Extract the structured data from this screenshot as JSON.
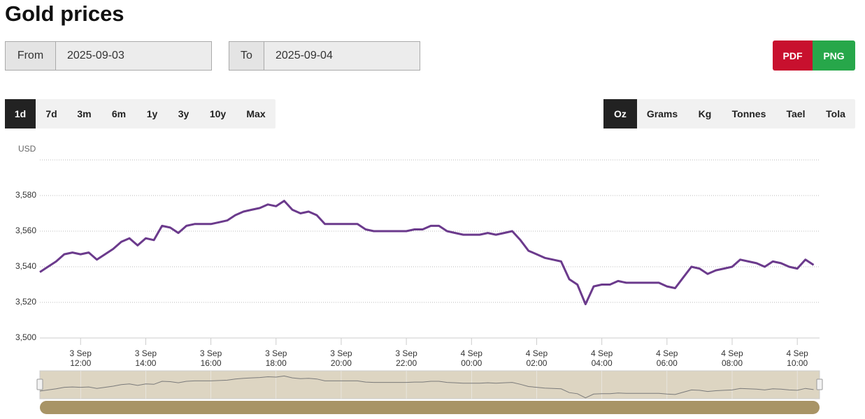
{
  "header": {
    "title": "Gold prices"
  },
  "controls": {
    "from": {
      "label": "From",
      "value": "2025-09-03"
    },
    "to": {
      "label": "To",
      "value": "2025-09-04"
    },
    "export": {
      "pdf": "PDF",
      "png": "PNG"
    },
    "ranges": {
      "items": [
        "1d",
        "7d",
        "3m",
        "6m",
        "1y",
        "3y",
        "10y",
        "Max"
      ],
      "active": 0
    },
    "units": {
      "items": [
        "Oz",
        "Grams",
        "Kg",
        "Tonnes",
        "Tael",
        "Tola"
      ],
      "active": 0
    }
  },
  "chart_data": {
    "type": "line",
    "y_label": "USD",
    "color": "#6b3a8c",
    "grid": true,
    "ylim": [
      3500,
      3600
    ],
    "yticks": [
      {
        "value": 3500,
        "label": "3,500"
      },
      {
        "value": 3520,
        "label": "3,520"
      },
      {
        "value": 3540,
        "label": "3,540"
      },
      {
        "value": 3560,
        "label": "3,560"
      },
      {
        "value": 3580,
        "label": "3,580"
      }
    ],
    "xlim": [
      "2025-09-03 10:45",
      "2025-09-04 10:41"
    ],
    "xticks": [
      {
        "value": "2025-09-03 12:00",
        "label": "3 Sep 12:00"
      },
      {
        "value": "2025-09-03 14:00",
        "label": "3 Sep 14:00"
      },
      {
        "value": "2025-09-03 16:00",
        "label": "3 Sep 16:00"
      },
      {
        "value": "2025-09-03 18:00",
        "label": "3 Sep 18:00"
      },
      {
        "value": "2025-09-03 20:00",
        "label": "3 Sep 20:00"
      },
      {
        "value": "2025-09-03 22:00",
        "label": "3 Sep 22:00"
      },
      {
        "value": "2025-09-04 00:00",
        "label": "4 Sep 00:00"
      },
      {
        "value": "2025-09-04 02:00",
        "label": "4 Sep 02:00"
      },
      {
        "value": "2025-09-04 04:00",
        "label": "4 Sep 04:00"
      },
      {
        "value": "2025-09-04 06:00",
        "label": "4 Sep 06:00"
      },
      {
        "value": "2025-09-04 08:00",
        "label": "4 Sep 08:00"
      },
      {
        "value": "2025-09-04 10:00",
        "label": "4 Sep 10:00"
      }
    ],
    "x": [
      "2025-09-03 10:45",
      "2025-09-03 11:00",
      "2025-09-03 11:15",
      "2025-09-03 11:30",
      "2025-09-03 11:45",
      "2025-09-03 12:00",
      "2025-09-03 12:15",
      "2025-09-03 12:30",
      "2025-09-03 12:45",
      "2025-09-03 13:00",
      "2025-09-03 13:15",
      "2025-09-03 13:30",
      "2025-09-03 13:45",
      "2025-09-03 14:00",
      "2025-09-03 14:15",
      "2025-09-03 14:30",
      "2025-09-03 14:45",
      "2025-09-03 15:00",
      "2025-09-03 15:15",
      "2025-09-03 15:30",
      "2025-09-03 15:45",
      "2025-09-03 16:00",
      "2025-09-03 16:15",
      "2025-09-03 16:30",
      "2025-09-03 16:45",
      "2025-09-03 17:00",
      "2025-09-03 17:15",
      "2025-09-03 17:30",
      "2025-09-03 17:45",
      "2025-09-03 18:00",
      "2025-09-03 18:15",
      "2025-09-03 18:30",
      "2025-09-03 18:45",
      "2025-09-03 19:00",
      "2025-09-03 19:15",
      "2025-09-03 19:30",
      "2025-09-03 19:45",
      "2025-09-03 20:00",
      "2025-09-03 20:15",
      "2025-09-03 20:30",
      "2025-09-03 20:45",
      "2025-09-03 21:00",
      "2025-09-03 21:15",
      "2025-09-03 21:30",
      "2025-09-03 21:45",
      "2025-09-03 22:00",
      "2025-09-03 22:15",
      "2025-09-03 22:30",
      "2025-09-03 22:45",
      "2025-09-03 23:00",
      "2025-09-03 23:15",
      "2025-09-03 23:30",
      "2025-09-03 23:45",
      "2025-09-04 00:00",
      "2025-09-04 00:15",
      "2025-09-04 00:30",
      "2025-09-04 00:45",
      "2025-09-04 01:00",
      "2025-09-04 01:15",
      "2025-09-04 01:30",
      "2025-09-04 01:45",
      "2025-09-04 02:00",
      "2025-09-04 02:15",
      "2025-09-04 02:30",
      "2025-09-04 02:45",
      "2025-09-04 03:00",
      "2025-09-04 03:15",
      "2025-09-04 03:30",
      "2025-09-04 03:45",
      "2025-09-04 04:00",
      "2025-09-04 04:15",
      "2025-09-04 04:30",
      "2025-09-04 04:45",
      "2025-09-04 05:00",
      "2025-09-04 05:15",
      "2025-09-04 05:30",
      "2025-09-04 05:45",
      "2025-09-04 06:00",
      "2025-09-04 06:15",
      "2025-09-04 06:30",
      "2025-09-04 06:45",
      "2025-09-04 07:00",
      "2025-09-04 07:15",
      "2025-09-04 07:30",
      "2025-09-04 07:45",
      "2025-09-04 08:00",
      "2025-09-04 08:15",
      "2025-09-04 08:30",
      "2025-09-04 08:45",
      "2025-09-04 09:00",
      "2025-09-04 09:15",
      "2025-09-04 09:30",
      "2025-09-04 09:45",
      "2025-09-04 10:00",
      "2025-09-04 10:15",
      "2025-09-04 10:30"
    ],
    "values": [
      3537,
      3540,
      3543,
      3547,
      3548,
      3547,
      3548,
      3544,
      3547,
      3550,
      3554,
      3556,
      3552,
      3556,
      3555,
      3563,
      3562,
      3559,
      3563,
      3564,
      3564,
      3564,
      3565,
      3566,
      3569,
      3571,
      3572,
      3573,
      3575,
      3574,
      3577,
      3572,
      3570,
      3571,
      3569,
      3564,
      3564,
      3564,
      3564,
      3564,
      3561,
      3560,
      3560,
      3560,
      3560,
      3560,
      3561,
      3561,
      3563,
      3563,
      3560,
      3559,
      3558,
      3558,
      3558,
      3559,
      3558,
      3559,
      3560,
      3555,
      3549,
      3547,
      3545,
      3544,
      3543,
      3533,
      3530,
      3519,
      3529,
      3530,
      3530,
      3532,
      3531,
      3531,
      3531,
      3531,
      3531,
      3529,
      3528,
      3534,
      3540,
      3539,
      3536,
      3538,
      3539,
      3540,
      3544,
      3543,
      3542,
      3540,
      3543,
      3542,
      3540,
      3539,
      3544,
      3541
    ]
  }
}
